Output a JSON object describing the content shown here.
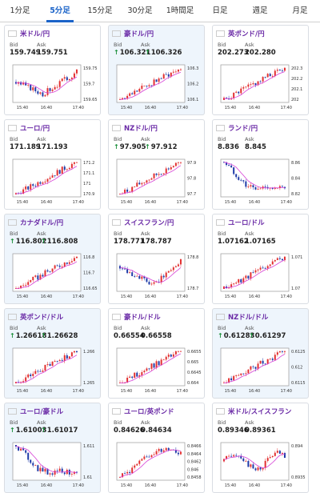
{
  "tabs": [
    "1分足",
    "5分足",
    "15分足",
    "30分足",
    "1時間足",
    "日足",
    "週足",
    "月足"
  ],
  "active_tab": 1,
  "colors": {
    "accent": "#1a63c8",
    "pair_name": "#6a2aa6",
    "candle_up": "#e23030",
    "candle_down": "#1f3aa8",
    "ma_line": "#d63fd6",
    "up_arrow": "#1a8f3a"
  },
  "bid_label": "Bid",
  "ask_label": "Ask",
  "cards": [
    {
      "name": "米ドル/円",
      "flag": "us-flag",
      "bid": "159.749",
      "ask": "159.751",
      "up": false,
      "highlight": false,
      "yticks": [
        "159.75",
        "159.7",
        "159.65"
      ],
      "xticks": [
        "15:40",
        "16:40",
        "17:40"
      ]
    },
    {
      "name": "豪ドル/円",
      "flag": "au-flag",
      "bid": "106.321",
      "ask": "106.326",
      "up": true,
      "highlight": true,
      "yticks": [
        "106.3",
        "106.2",
        "106.1"
      ],
      "xticks": [
        "15:40",
        "16:40",
        "17:40"
      ]
    },
    {
      "name": "英ポンド/円",
      "flag": "gb-flag",
      "bid": "202.273",
      "ask": "202.280",
      "up": false,
      "highlight": false,
      "yticks": [
        "202.3",
        "202.2",
        "202.1",
        "202"
      ],
      "xticks": [
        "15:40",
        "16:40",
        "17:40"
      ]
    },
    {
      "name": "ユーロ/円",
      "flag": "eu-flag",
      "bid": "171.189",
      "ask": "171.193",
      "up": false,
      "highlight": false,
      "yticks": [
        "171.2",
        "171.1",
        "171",
        "170.9"
      ],
      "xticks": [
        "15:40",
        "16:40",
        "17:40"
      ]
    },
    {
      "name": "NZドル/円",
      "flag": "nz-flag",
      "bid": "97.905",
      "ask": "97.912",
      "up": true,
      "highlight": false,
      "yticks": [
        "97.9",
        "97.8",
        "97.7"
      ],
      "xticks": [
        "15:40",
        "16:40",
        "17:40"
      ]
    },
    {
      "name": "ランド/円",
      "flag": "za-flag",
      "bid": "8.836",
      "ask": "8.845",
      "up": false,
      "highlight": false,
      "yticks": [
        "8.86",
        "8.84",
        "8.82"
      ],
      "xticks": [
        "15:40",
        "16:40",
        "17:40"
      ]
    },
    {
      "name": "カナダドル/円",
      "flag": "ca-flag",
      "bid": "116.802",
      "ask": "116.808",
      "up": true,
      "highlight": true,
      "yticks": [
        "116.8",
        "116.7",
        "116.65"
      ],
      "xticks": [
        "15:40",
        "16:40",
        "17:40"
      ]
    },
    {
      "name": "スイスフラン/円",
      "flag": "ch-flag",
      "bid": "178.771",
      "ask": "178.787",
      "up": false,
      "highlight": false,
      "yticks": [
        "178.8",
        "178.7"
      ],
      "xticks": [
        "15:40",
        "16:40",
        "17:40"
      ]
    },
    {
      "name": "ユーロ/ドル",
      "flag": "eu-flag",
      "bid": "1.07162",
      "ask": "1.07165",
      "up": false,
      "highlight": false,
      "yticks": [
        "1.071",
        "1.07"
      ],
      "xticks": [
        "15:40",
        "16:40",
        "17:40"
      ]
    },
    {
      "name": "英ポンド/ドル",
      "flag": "gb-flag",
      "bid": "1.26618",
      "ask": "1.26628",
      "up": true,
      "highlight": true,
      "yticks": [
        "1.266",
        "1.265"
      ],
      "xticks": [
        "15:40",
        "16:40",
        "17:40"
      ]
    },
    {
      "name": "豪ドル/ドル",
      "flag": "au-flag",
      "bid": "0.66554",
      "ask": "0.66558",
      "up": false,
      "highlight": false,
      "yticks": [
        "0.6655",
        "0.665",
        "0.6645",
        "0.664"
      ],
      "xticks": [
        "15:40",
        "16:40",
        "17:40"
      ]
    },
    {
      "name": "NZドル/ドル",
      "flag": "nz-flag",
      "bid": "0.61283",
      "ask": "0.61297",
      "up": true,
      "highlight": true,
      "yticks": [
        "0.6125",
        "0.612",
        "0.6115"
      ],
      "xticks": [
        "15:40",
        "16:40",
        "17:40"
      ]
    },
    {
      "name": "ユーロ/豪ドル",
      "flag": "eu-flag",
      "bid": "1.61003",
      "ask": "1.61017",
      "up": true,
      "highlight": true,
      "yticks": [
        "1.611",
        "1.61"
      ],
      "xticks": [
        "15:40",
        "16:40",
        "17:40"
      ]
    },
    {
      "name": "ユーロ/英ポンド",
      "flag": "eu-flag",
      "bid": "0.84626",
      "ask": "0.84634",
      "up": false,
      "highlight": false,
      "yticks": [
        "0.8466",
        "0.8464",
        "0.8462",
        "0.846",
        "0.8458"
      ],
      "xticks": [
        "15:40",
        "16:40",
        "17:40"
      ]
    },
    {
      "name": "米ドル/スイスフラン",
      "flag": "ch-flag",
      "bid": "0.89346",
      "ask": "0.89361",
      "up": false,
      "highlight": false,
      "yticks": [
        "0.894",
        "0.8935"
      ],
      "xticks": [
        "15:40",
        "16:40",
        "17:40"
      ]
    }
  ],
  "chart_data": [
    {
      "type": "candlestick",
      "pair": "米ドル/円",
      "trend": "flat-down-up"
    },
    {
      "type": "candlestick",
      "pair": "豪ドル/円",
      "trend": "up"
    },
    {
      "type": "candlestick",
      "pair": "英ポンド/円",
      "trend": "up"
    },
    {
      "type": "candlestick",
      "pair": "ユーロ/円",
      "trend": "up"
    },
    {
      "type": "candlestick",
      "pair": "NZドル/円",
      "trend": "up"
    },
    {
      "type": "candlestick",
      "pair": "ランド/円",
      "trend": "down-flat"
    },
    {
      "type": "candlestick",
      "pair": "カナダドル/円",
      "trend": "up"
    },
    {
      "type": "candlestick",
      "pair": "スイスフラン/円",
      "trend": "down-up"
    },
    {
      "type": "candlestick",
      "pair": "ユーロ/ドル",
      "trend": "up"
    },
    {
      "type": "candlestick",
      "pair": "英ポンド/ドル",
      "trend": "up"
    },
    {
      "type": "candlestick",
      "pair": "豪ドル/ドル",
      "trend": "up"
    },
    {
      "type": "candlestick",
      "pair": "NZドル/ドル",
      "trend": "up"
    },
    {
      "type": "candlestick",
      "pair": "ユーロ/豪ドル",
      "trend": "down-flat"
    },
    {
      "type": "candlestick",
      "pair": "ユーロ/英ポンド",
      "trend": "up-flat"
    },
    {
      "type": "candlestick",
      "pair": "米ドル/スイスフラン",
      "trend": "flat"
    }
  ]
}
